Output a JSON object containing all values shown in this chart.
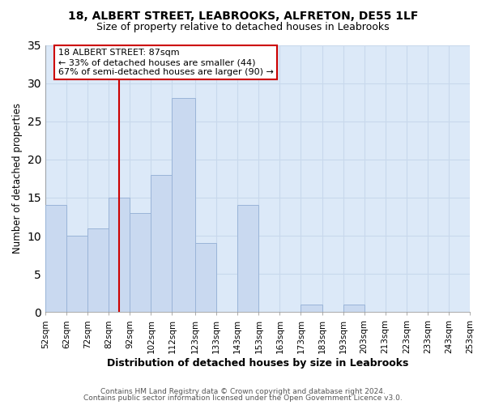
{
  "title": "18, ALBERT STREET, LEABROOKS, ALFRETON, DE55 1LF",
  "subtitle": "Size of property relative to detached houses in Leabrooks",
  "xlabel": "Distribution of detached houses by size in Leabrooks",
  "ylabel": "Number of detached properties",
  "bin_edges": [
    52,
    62,
    72,
    82,
    92,
    102,
    112,
    123,
    133,
    143,
    153,
    163,
    173,
    183,
    193,
    203,
    213,
    223,
    233,
    243,
    253
  ],
  "counts": [
    14,
    10,
    11,
    15,
    13,
    18,
    28,
    9,
    0,
    14,
    0,
    0,
    1,
    0,
    1,
    0,
    0,
    0,
    0,
    0
  ],
  "bar_color": "#c9d9f0",
  "bar_edge_color": "#9ab4d8",
  "reference_line_x": 87,
  "reference_line_color": "#cc0000",
  "ylim": [
    0,
    35
  ],
  "yticks": [
    0,
    5,
    10,
    15,
    20,
    25,
    30,
    35
  ],
  "annotation_title": "18 ALBERT STREET: 87sqm",
  "annotation_line1": "← 33% of detached houses are smaller (44)",
  "annotation_line2": "67% of semi-detached houses are larger (90) →",
  "footer1": "Contains HM Land Registry data © Crown copyright and database right 2024.",
  "footer2": "Contains public sector information licensed under the Open Government Licence v3.0.",
  "tick_labels": [
    "52sqm",
    "62sqm",
    "72sqm",
    "82sqm",
    "92sqm",
    "102sqm",
    "112sqm",
    "123sqm",
    "133sqm",
    "143sqm",
    "153sqm",
    "163sqm",
    "173sqm",
    "183sqm",
    "193sqm",
    "203sqm",
    "213sqm",
    "223sqm",
    "233sqm",
    "243sqm",
    "253sqm"
  ],
  "grid_color": "#c8d8ec",
  "plot_bg_color": "#dce9f8",
  "background_color": "#ffffff"
}
